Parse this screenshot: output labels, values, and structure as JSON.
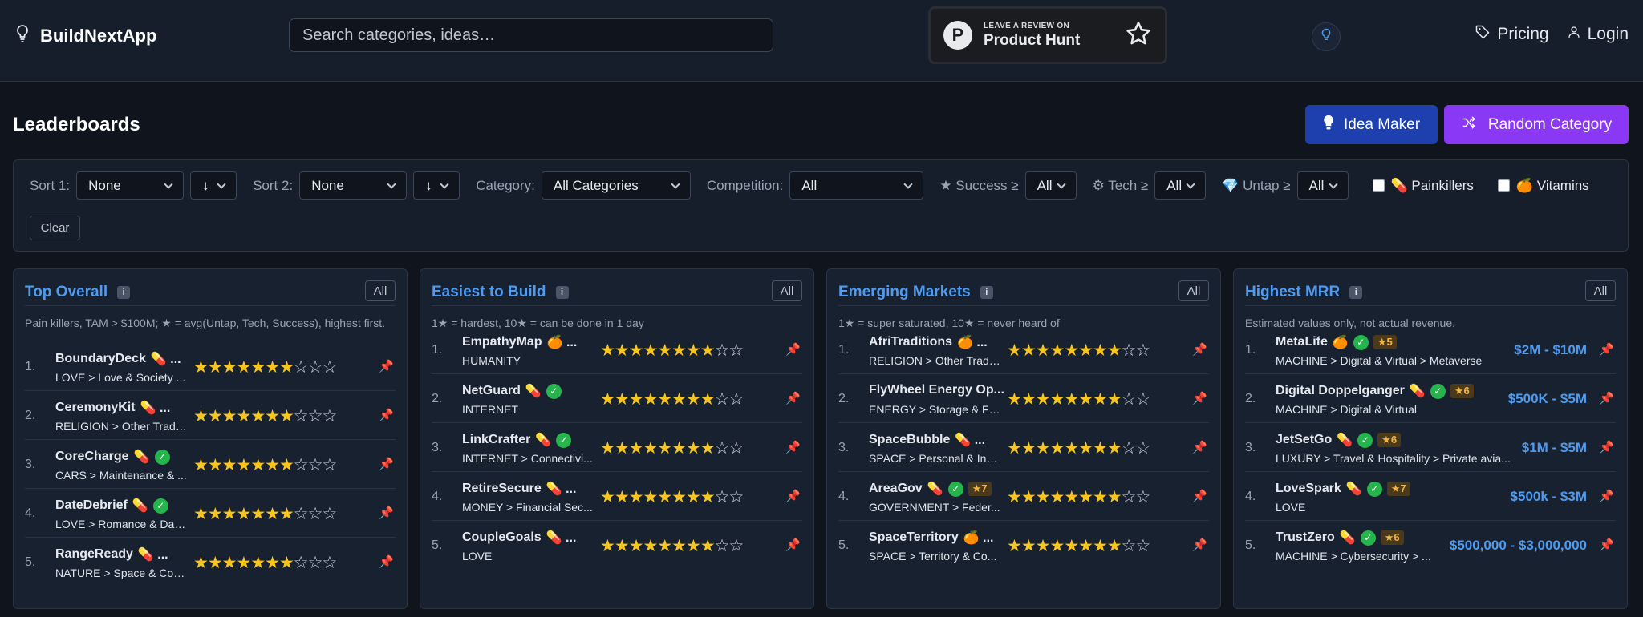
{
  "header": {
    "brand": "BuildNextApp",
    "search_placeholder": "Search categories, ideas…",
    "ph_small": "LEAVE A REVIEW ON",
    "ph_big": "Product Hunt",
    "ph_letter": "P",
    "nav_pricing": "Pricing",
    "nav_login": "Login"
  },
  "page": {
    "title": "Leaderboards",
    "idea_maker": "Idea Maker",
    "random_category": "Random Category"
  },
  "filters": {
    "sort1_label": "Sort 1:",
    "sort1_value": "None",
    "sort1_dir": "↓",
    "sort2_label": "Sort 2:",
    "sort2_value": "None",
    "sort2_dir": "↓",
    "category_label": "Category:",
    "category_value": "All Categories",
    "competition_label": "Competition:",
    "competition_value": "All",
    "success_label": "★ Success ≥",
    "success_value": "All",
    "tech_label": "⚙ Tech ≥",
    "tech_value": "All",
    "untap_label": "💎 Untap ≥",
    "untap_value": "All",
    "painkillers_label": "💊 Painkillers",
    "vitamins_label": "🍊 Vitamins",
    "clear": "Clear"
  },
  "boards": [
    {
      "title": "Top Overall",
      "info": "i",
      "all": "All",
      "desc": "Pain killers, TAM > $100M; ★ = avg(Untap, Tech, Success), highest first.",
      "rows": [
        {
          "rank": "1.",
          "name": "BoundaryDeck",
          "badges": "💊 ...",
          "path": "LOVE > Love & Society ...",
          "stars": 7
        },
        {
          "rank": "2.",
          "name": "CeremonyKit",
          "badges": "💊 ...",
          "path": "RELIGION > Other Tradi...",
          "stars": 7
        },
        {
          "rank": "3.",
          "name": "CoreCharge",
          "badges": "💊",
          "ok": true,
          "path": "CARS > Maintenance & ...",
          "stars": 7
        },
        {
          "rank": "4.",
          "name": "DateDebrief",
          "badges": "💊",
          "ok": true,
          "path": "LOVE > Romance & Dati...",
          "stars": 7
        },
        {
          "rank": "5.",
          "name": "RangeReady",
          "badges": "💊 ...",
          "path": "NATURE > Space & Cos...",
          "stars": 7
        }
      ]
    },
    {
      "title": "Easiest to Build",
      "info": "i",
      "all": "All",
      "desc": "1★ = hardest, 10★ = can be done in 1 day",
      "rows": [
        {
          "rank": "1.",
          "name": "EmpathyMap",
          "badges": "🍊 ...",
          "path": "HUMANITY",
          "stars": 8
        },
        {
          "rank": "2.",
          "name": "NetGuard",
          "badges": "💊",
          "ok": true,
          "path": "INTERNET",
          "stars": 8
        },
        {
          "rank": "3.",
          "name": "LinkCrafter",
          "badges": "💊",
          "ok": true,
          "path": "INTERNET > Connectivi...",
          "stars": 8
        },
        {
          "rank": "4.",
          "name": "RetireSecure",
          "badges": "💊 ...",
          "path": "MONEY > Financial Sec...",
          "stars": 8
        },
        {
          "rank": "5.",
          "name": "CoupleGoals",
          "badges": "💊 ...",
          "path": "LOVE",
          "stars": 8
        }
      ]
    },
    {
      "title": "Emerging Markets",
      "info": "i",
      "all": "All",
      "desc": "1★ = super saturated, 10★ = never heard of",
      "rows": [
        {
          "rank": "1.",
          "name": "AfriTraditions",
          "badges": "🍊 ...",
          "path": "RELIGION > Other Tradi...",
          "stars": 8
        },
        {
          "rank": "2.",
          "name": "FlyWheel Energy Op...",
          "badges": "",
          "path": "ENERGY > Storage & Fl...",
          "stars": 8
        },
        {
          "rank": "3.",
          "name": "SpaceBubble",
          "badges": "💊 ...",
          "path": "SPACE > Personal & Inti...",
          "stars": 8
        },
        {
          "rank": "4.",
          "name": "AreaGov",
          "badges": "💊",
          "ok": true,
          "pill": "★7",
          "path": "GOVERNMENT > Feder...",
          "stars": 8
        },
        {
          "rank": "5.",
          "name": "SpaceTerritory",
          "badges": "🍊 ...",
          "path": "SPACE > Territory & Co...",
          "stars": 8
        }
      ]
    },
    {
      "title": "Highest MRR",
      "info": "i",
      "all": "All",
      "desc": "Estimated values only, not actual revenue.",
      "rows": [
        {
          "rank": "1.",
          "name": "MetaLife",
          "badges": "🍊",
          "ok": true,
          "pill": "★5",
          "path": "MACHINE > Digital & Virtual > Metaverse",
          "mrr": "$2M - $10M"
        },
        {
          "rank": "2.",
          "name": "Digital Doppelganger",
          "badges": "💊",
          "ok": true,
          "pill": "★6",
          "path": "MACHINE > Digital & Virtual",
          "mrr": "$500K - $5M"
        },
        {
          "rank": "3.",
          "name": "JetSetGo",
          "badges": "💊",
          "ok": true,
          "pill": "★6",
          "path": "LUXURY > Travel & Hospitality > Private avia...",
          "mrr": "$1M - $5M"
        },
        {
          "rank": "4.",
          "name": "LoveSpark",
          "badges": "💊",
          "ok": true,
          "pill": "★7",
          "path": "LOVE",
          "mrr": "$500k - $3M"
        },
        {
          "rank": "5.",
          "name": "TrustZero",
          "badges": "💊",
          "ok": true,
          "pill": "★6",
          "path": "MACHINE > Cybersecurity > ...",
          "mrr": "$500,000 - $3,000,000"
        }
      ]
    }
  ],
  "icons": {
    "brand": "lightbulb-icon",
    "theme": "lightbulb-icon",
    "pricing": "tag-icon",
    "login": "user-icon",
    "pin": "pin-icon",
    "shuffle": "shuffle-icon",
    "verified": "check-circle-icon"
  },
  "colors": {
    "accent_blue": "#4f9bf0",
    "idea_button": "#1e40af",
    "random_button": "#8b38f5",
    "star": "#f7c51e",
    "verified": "#26b44c",
    "pin": "#e05260"
  }
}
